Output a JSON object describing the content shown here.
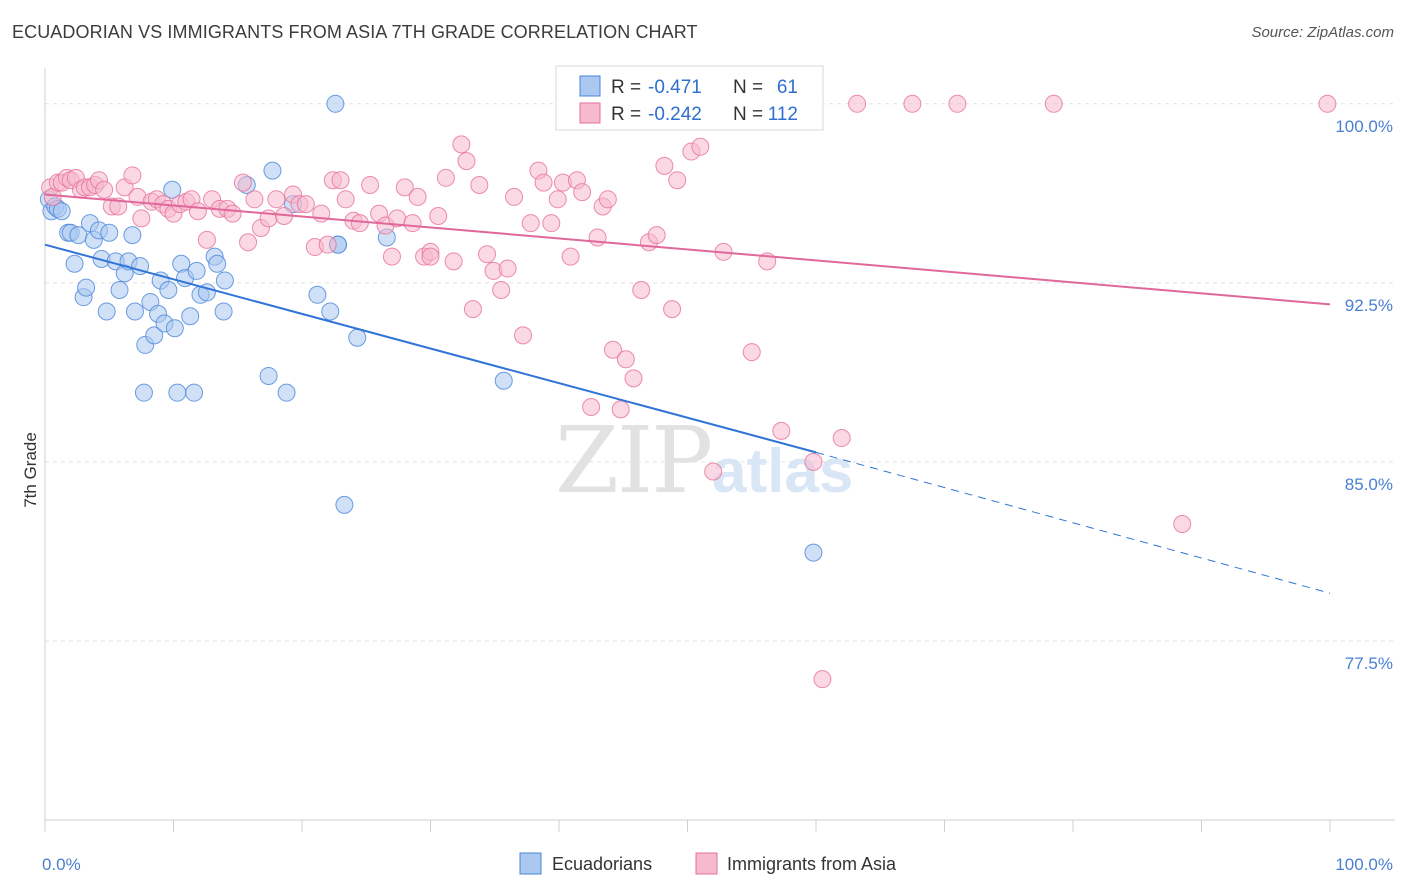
{
  "title": "ECUADORIAN VS IMMIGRANTS FROM ASIA 7TH GRADE CORRELATION CHART",
  "source": "Source: ZipAtlas.com",
  "watermark": {
    "zip": "ZIP",
    "atlas": "atlas"
  },
  "colors": {
    "blue": "#4a86d8",
    "pink": "#e8719a",
    "blue_fill": "#aac8f0",
    "pink_fill": "#f6b9cd",
    "axis_text": "#4a7fd1"
  },
  "chart_data": {
    "type": "scatter",
    "title": "ECUADORIAN VS IMMIGRANTS FROM ASIA 7TH GRADE CORRELATION CHART",
    "xlabel": "",
    "ylabel": "7th Grade",
    "xlim": [
      0,
      100
    ],
    "ylim": [
      70.0,
      101.5
    ],
    "x_tick_labels": [
      "0.0%",
      "100.0%"
    ],
    "y_ticks": [
      {
        "value": 77.5,
        "label": "77.5%"
      },
      {
        "value": 85.0,
        "label": "85.0%"
      },
      {
        "value": 92.5,
        "label": "92.5%"
      },
      {
        "value": 100.0,
        "label": "100.0%"
      }
    ],
    "grid": true,
    "legend_position": "bottom-center",
    "stats": [
      {
        "r_label": "R =",
        "r": "-0.471",
        "n_label": "N =",
        "n": "61"
      },
      {
        "r_label": "R =",
        "r": "-0.242",
        "n_label": "N =",
        "n": "112"
      }
    ],
    "series": [
      {
        "name": "Ecuadorians",
        "color": "#4a86d8",
        "trend": {
          "x0": 0,
          "y0": 94.1,
          "x1": 60,
          "y1": 85.4,
          "dash_to_x": 100,
          "dash_to_y": 79.5
        },
        "points": [
          [
            0.3,
            96.0
          ],
          [
            0.5,
            95.5
          ],
          [
            0.8,
            95.7
          ],
          [
            1.0,
            95.6
          ],
          [
            1.3,
            95.5
          ],
          [
            1.8,
            94.6
          ],
          [
            2.0,
            94.6
          ],
          [
            2.3,
            93.3
          ],
          [
            2.6,
            94.5
          ],
          [
            3.0,
            91.9
          ],
          [
            3.2,
            92.3
          ],
          [
            3.5,
            95.0
          ],
          [
            3.8,
            94.3
          ],
          [
            4.2,
            94.7
          ],
          [
            4.4,
            93.5
          ],
          [
            4.8,
            91.3
          ],
          [
            5.0,
            94.6
          ],
          [
            5.5,
            93.4
          ],
          [
            5.8,
            92.2
          ],
          [
            6.2,
            92.9
          ],
          [
            6.5,
            93.4
          ],
          [
            6.8,
            94.5
          ],
          [
            7.0,
            91.3
          ],
          [
            7.4,
            93.2
          ],
          [
            7.7,
            87.9
          ],
          [
            7.8,
            89.9
          ],
          [
            8.2,
            91.7
          ],
          [
            8.5,
            90.3
          ],
          [
            8.8,
            91.2
          ],
          [
            9.0,
            92.6
          ],
          [
            9.3,
            90.8
          ],
          [
            9.6,
            92.2
          ],
          [
            9.9,
            96.4
          ],
          [
            10.1,
            90.6
          ],
          [
            10.3,
            87.9
          ],
          [
            10.6,
            93.3
          ],
          [
            10.9,
            92.7
          ],
          [
            11.3,
            91.1
          ],
          [
            11.6,
            87.9
          ],
          [
            11.8,
            93.0
          ],
          [
            12.1,
            92.0
          ],
          [
            12.6,
            92.1
          ],
          [
            13.2,
            93.6
          ],
          [
            13.4,
            93.3
          ],
          [
            13.9,
            91.3
          ],
          [
            14.0,
            92.6
          ],
          [
            15.7,
            96.6
          ],
          [
            17.4,
            88.6
          ],
          [
            17.7,
            97.2
          ],
          [
            18.8,
            87.9
          ],
          [
            19.3,
            95.8
          ],
          [
            21.2,
            92.0
          ],
          [
            22.2,
            91.3
          ],
          [
            22.8,
            94.1
          ],
          [
            22.6,
            100.0
          ],
          [
            23.3,
            83.2
          ],
          [
            24.3,
            90.2
          ],
          [
            26.6,
            94.4
          ],
          [
            35.7,
            88.4
          ],
          [
            59.8,
            81.2
          ],
          [
            22.8,
            94.1
          ]
        ]
      },
      {
        "name": "Immigrants from Asia",
        "color": "#e8719a",
        "trend": {
          "x0": 0,
          "y0": 96.2,
          "x1": 100,
          "y1": 91.6
        },
        "points": [
          [
            0.4,
            96.5
          ],
          [
            0.6,
            96.1
          ],
          [
            1.0,
            96.7
          ],
          [
            1.3,
            96.7
          ],
          [
            1.7,
            96.9
          ],
          [
            2.0,
            96.8
          ],
          [
            2.4,
            96.9
          ],
          [
            2.8,
            96.4
          ],
          [
            3.1,
            96.5
          ],
          [
            3.5,
            96.5
          ],
          [
            3.9,
            96.6
          ],
          [
            4.2,
            96.8
          ],
          [
            4.6,
            96.4
          ],
          [
            5.2,
            95.7
          ],
          [
            5.7,
            95.7
          ],
          [
            6.2,
            96.5
          ],
          [
            6.8,
            97.0
          ],
          [
            7.2,
            96.1
          ],
          [
            7.5,
            95.2
          ],
          [
            8.3,
            95.9
          ],
          [
            8.7,
            96.0
          ],
          [
            9.2,
            95.8
          ],
          [
            9.6,
            95.6
          ],
          [
            10.0,
            95.4
          ],
          [
            10.5,
            95.8
          ],
          [
            11.0,
            95.9
          ],
          [
            11.4,
            96.0
          ],
          [
            11.9,
            95.5
          ],
          [
            12.6,
            94.3
          ],
          [
            13.0,
            96.0
          ],
          [
            13.6,
            95.6
          ],
          [
            14.2,
            95.6
          ],
          [
            14.6,
            95.4
          ],
          [
            15.4,
            96.7
          ],
          [
            15.8,
            94.2
          ],
          [
            16.3,
            96.0
          ],
          [
            16.8,
            94.8
          ],
          [
            17.4,
            95.2
          ],
          [
            18.0,
            96.0
          ],
          [
            18.6,
            95.3
          ],
          [
            19.3,
            96.2
          ],
          [
            19.8,
            95.8
          ],
          [
            20.3,
            95.8
          ],
          [
            21.0,
            94.0
          ],
          [
            21.5,
            95.4
          ],
          [
            22.0,
            94.1
          ],
          [
            22.4,
            96.8
          ],
          [
            23.0,
            96.8
          ],
          [
            23.4,
            96.0
          ],
          [
            24.0,
            95.1
          ],
          [
            24.5,
            95.0
          ],
          [
            25.3,
            96.6
          ],
          [
            26.0,
            95.4
          ],
          [
            26.5,
            94.9
          ],
          [
            27.0,
            93.6
          ],
          [
            27.4,
            95.2
          ],
          [
            28.0,
            96.5
          ],
          [
            28.6,
            95.0
          ],
          [
            29.0,
            96.1
          ],
          [
            29.5,
            93.6
          ],
          [
            30.0,
            93.8
          ],
          [
            30.6,
            95.3
          ],
          [
            31.2,
            96.9
          ],
          [
            31.8,
            93.4
          ],
          [
            32.4,
            98.3
          ],
          [
            32.8,
            97.6
          ],
          [
            33.3,
            91.4
          ],
          [
            33.8,
            96.6
          ],
          [
            34.4,
            93.7
          ],
          [
            34.9,
            93.0
          ],
          [
            35.5,
            92.2
          ],
          [
            36.0,
            93.1
          ],
          [
            36.5,
            96.1
          ],
          [
            37.2,
            90.3
          ],
          [
            37.8,
            95.0
          ],
          [
            38.4,
            97.2
          ],
          [
            38.8,
            96.7
          ],
          [
            39.4,
            95.0
          ],
          [
            39.9,
            96.0
          ],
          [
            40.3,
            96.7
          ],
          [
            40.9,
            93.6
          ],
          [
            41.4,
            96.8
          ],
          [
            41.8,
            96.3
          ],
          [
            42.5,
            87.3
          ],
          [
            43.0,
            94.4
          ],
          [
            43.4,
            95.7
          ],
          [
            43.8,
            96.0
          ],
          [
            44.2,
            89.7
          ],
          [
            44.8,
            87.2
          ],
          [
            45.2,
            89.3
          ],
          [
            45.8,
            88.5
          ],
          [
            46.4,
            92.2
          ],
          [
            47.0,
            94.2
          ],
          [
            47.6,
            94.5
          ],
          [
            48.2,
            97.4
          ],
          [
            48.8,
            91.4
          ],
          [
            49.2,
            96.8
          ],
          [
            50.3,
            98.0
          ],
          [
            51.0,
            98.2
          ],
          [
            52.0,
            84.6
          ],
          [
            52.8,
            93.8
          ],
          [
            53.6,
            100.0
          ],
          [
            54.0,
            99.6
          ],
          [
            55.0,
            89.6
          ],
          [
            56.2,
            93.4
          ],
          [
            57.3,
            86.3
          ],
          [
            59.8,
            85.0
          ],
          [
            60.5,
            75.9
          ],
          [
            62.0,
            86.0
          ],
          [
            63.2,
            100.0
          ],
          [
            67.5,
            100.0
          ],
          [
            71.0,
            100.0
          ],
          [
            78.5,
            100.0
          ],
          [
            88.5,
            82.4
          ],
          [
            99.8,
            100.0
          ],
          [
            30.0,
            93.6
          ]
        ]
      }
    ]
  }
}
